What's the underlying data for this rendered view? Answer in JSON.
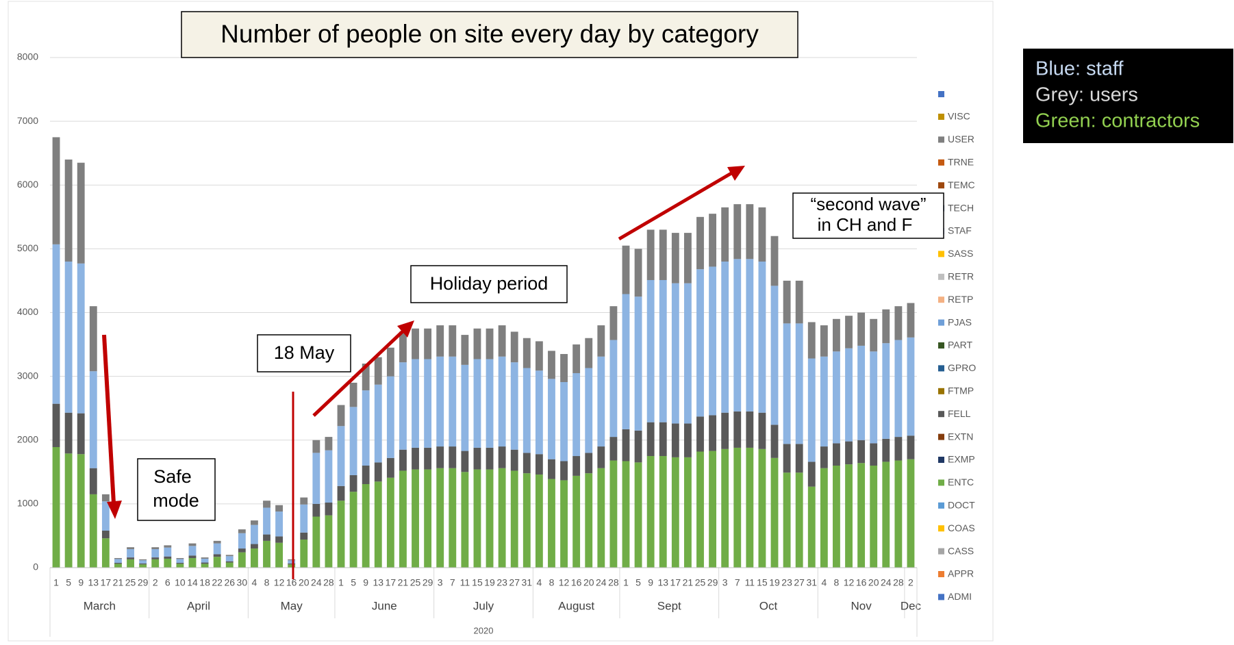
{
  "chart_data": {
    "type": "stacked-bar",
    "title": "Number of people on site every day by category",
    "group_label": "2020",
    "months": [
      {
        "name": "March",
        "days": [
          1,
          5,
          9,
          13,
          17,
          21,
          25,
          29
        ]
      },
      {
        "name": "April",
        "days": [
          2,
          6,
          10,
          14,
          18,
          22,
          26,
          30
        ]
      },
      {
        "name": "May",
        "days": [
          4,
          8,
          12,
          16,
          20,
          24,
          28
        ]
      },
      {
        "name": "June",
        "days": [
          1,
          5,
          9,
          13,
          17,
          21,
          25,
          29
        ]
      },
      {
        "name": "July",
        "days": [
          3,
          7,
          11,
          15,
          19,
          23,
          27,
          31
        ]
      },
      {
        "name": "August",
        "days": [
          4,
          8,
          12,
          16,
          20,
          24,
          28
        ]
      },
      {
        "name": "Sept",
        "days": [
          1,
          5,
          9,
          13,
          17,
          21,
          25,
          29
        ]
      },
      {
        "name": "Oct",
        "days": [
          3,
          7,
          11,
          15,
          19,
          23,
          27,
          31
        ]
      },
      {
        "name": "Nov",
        "days": [
          4,
          8,
          12,
          16,
          20,
          24,
          28
        ]
      },
      {
        "name": "Dec",
        "days": [
          2
        ]
      }
    ],
    "series": [
      {
        "name": "ENTC",
        "color": "#70ad47",
        "values": [
          1890,
          1790,
          1780,
          1150,
          460,
          60,
          130,
          50,
          130,
          140,
          60,
          150,
          60,
          170,
          80,
          240,
          300,
          420,
          390,
          50,
          440,
          800,
          820,
          1050,
          1190,
          1310,
          1350,
          1410,
          1520,
          1540,
          1540,
          1560,
          1560,
          1500,
          1540,
          1540,
          1560,
          1520,
          1480,
          1460,
          1390,
          1370,
          1440,
          1480,
          1560,
          1680,
          1670,
          1650,
          1750,
          1750,
          1730,
          1730,
          1820,
          1830,
          1860,
          1880,
          1880,
          1860,
          1720,
          1490,
          1490,
          1270,
          1560,
          1600,
          1620,
          1640,
          1600,
          1660,
          1680,
          1700
        ]
      },
      {
        "name": "FELL",
        "color": "#595959",
        "values": [
          680,
          640,
          640,
          410,
          120,
          15,
          30,
          15,
          30,
          35,
          15,
          40,
          20,
          40,
          20,
          60,
          70,
          100,
          100,
          15,
          110,
          200,
          200,
          230,
          260,
          290,
          300,
          310,
          330,
          340,
          340,
          340,
          340,
          330,
          340,
          340,
          340,
          330,
          320,
          320,
          310,
          300,
          310,
          320,
          340,
          370,
          500,
          500,
          530,
          530,
          530,
          530,
          550,
          560,
          570,
          570,
          570,
          570,
          520,
          450,
          450,
          390,
          340,
          350,
          360,
          360,
          350,
          360,
          370,
          370
        ]
      },
      {
        "name": "STAF",
        "color": "#8db4e2",
        "values": [
          2500,
          2370,
          2350,
          1520,
          460,
          60,
          130,
          50,
          130,
          140,
          60,
          150,
          60,
          170,
          80,
          240,
          300,
          420,
          390,
          50,
          440,
          800,
          820,
          940,
          1070,
          1180,
          1220,
          1280,
          1370,
          1390,
          1390,
          1410,
          1410,
          1350,
          1390,
          1390,
          1410,
          1370,
          1330,
          1310,
          1260,
          1240,
          1300,
          1330,
          1410,
          1520,
          2120,
          2100,
          2230,
          2230,
          2200,
          2200,
          2310,
          2330,
          2370,
          2390,
          2390,
          2370,
          2180,
          1890,
          1890,
          1620,
          1410,
          1440,
          1460,
          1480,
          1440,
          1500,
          1520,
          1540
        ]
      },
      {
        "name": "USER",
        "color": "#7f7f7f",
        "values": [
          1680,
          1600,
          1580,
          1020,
          110,
          15,
          30,
          15,
          30,
          35,
          15,
          40,
          20,
          40,
          20,
          60,
          70,
          110,
          100,
          15,
          110,
          200,
          210,
          330,
          380,
          420,
          430,
          450,
          480,
          480,
          480,
          490,
          490,
          470,
          480,
          480,
          490,
          480,
          470,
          460,
          440,
          440,
          450,
          470,
          490,
          530,
          760,
          750,
          790,
          790,
          790,
          790,
          820,
          830,
          850,
          860,
          860,
          850,
          780,
          670,
          670,
          570,
          490,
          510,
          510,
          520,
          510,
          530,
          530,
          540
        ]
      }
    ],
    "legend": [
      {
        "name": "VISC",
        "color": "#bf9000"
      },
      {
        "name": "USER",
        "color": "#7f7f7f"
      },
      {
        "name": "TRNE",
        "color": "#c55a11"
      },
      {
        "name": "TEMC",
        "color": "#9e480e"
      },
      {
        "name": "TECH",
        "color": "#264478"
      },
      {
        "name": "STAF",
        "color": "#8faadc"
      },
      {
        "name": "SASS",
        "color": "#ffc000"
      },
      {
        "name": "RETR",
        "color": "#bfbfbf"
      },
      {
        "name": "RETP",
        "color": "#f4b183"
      },
      {
        "name": "PJAS",
        "color": "#6f9fd8"
      },
      {
        "name": "PART",
        "color": "#375623"
      },
      {
        "name": "GPRO",
        "color": "#255e91"
      },
      {
        "name": "FTMP",
        "color": "#997300"
      },
      {
        "name": "FELL",
        "color": "#595959"
      },
      {
        "name": "EXTN",
        "color": "#843c0c"
      },
      {
        "name": "EXMP",
        "color": "#203864"
      },
      {
        "name": "ENTC",
        "color": "#70ad47"
      },
      {
        "name": "DOCT",
        "color": "#5b9bd5"
      },
      {
        "name": "COAS",
        "color": "#ffc000"
      },
      {
        "name": "CASS",
        "color": "#a5a5a5"
      },
      {
        "name": "APPR",
        "color": "#ed7d31"
      },
      {
        "name": "ADMI",
        "color": "#4472c4"
      }
    ],
    "ylim": [
      0,
      8000
    ],
    "yticks": [
      0,
      1000,
      2000,
      3000,
      4000,
      5000,
      6000,
      7000,
      8000
    ],
    "grid": true,
    "annotations": {
      "safe_mode": [
        "Safe",
        "mode"
      ],
      "may": "18 May",
      "holiday": "Holiday period",
      "second_wave": [
        "“second wave”",
        "in CH and F"
      ]
    },
    "notes": [
      {
        "text": "Blue: staff",
        "color": "#c6d9f1"
      },
      {
        "text": "Grey: users",
        "color": "#d9d9d9"
      },
      {
        "text": "Green: contractors",
        "color": "#92d050"
      }
    ]
  }
}
